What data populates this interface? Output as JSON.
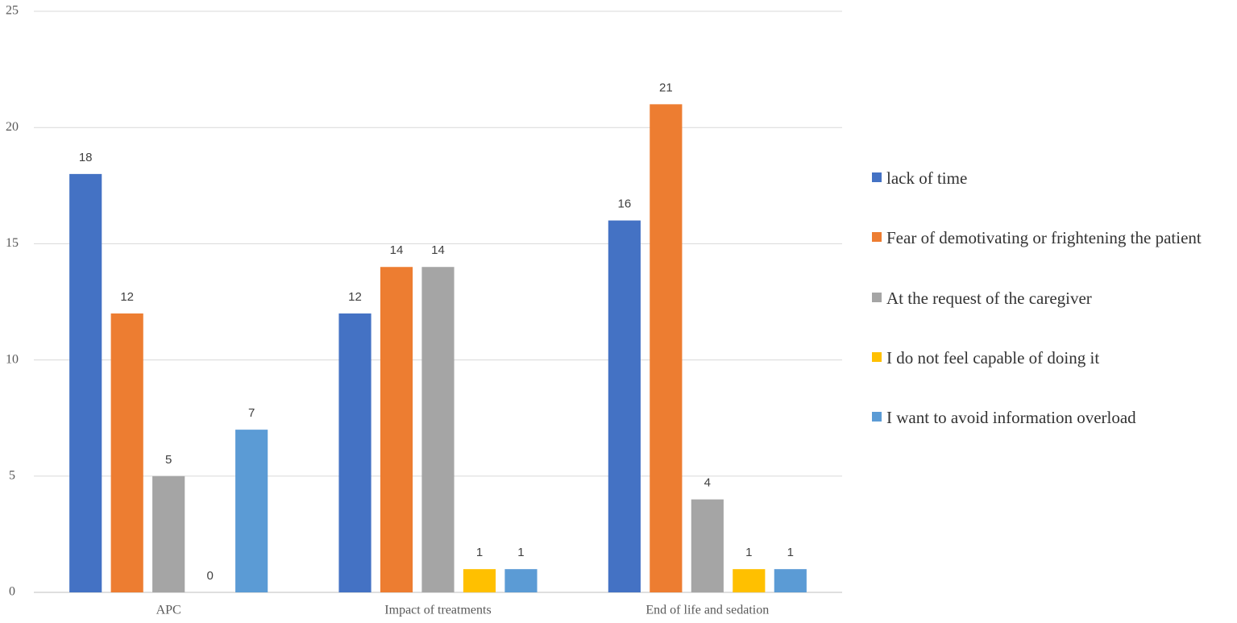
{
  "chart_data": {
    "type": "bar",
    "categories": [
      "APC",
      "Impact of treatments",
      "End of life and sedation"
    ],
    "series": [
      {
        "name": "lack of time",
        "color": "#4472c4",
        "values": [
          18,
          12,
          16
        ]
      },
      {
        "name": "Fear of demotivating or frightening the patient",
        "color": "#ed7d31",
        "values": [
          12,
          14,
          21
        ]
      },
      {
        "name": "At the request of the caregiver",
        "color": "#a5a5a5",
        "values": [
          5,
          14,
          4
        ]
      },
      {
        "name": "I do not feel capable of doing it",
        "color": "#ffc000",
        "values": [
          0,
          1,
          1
        ]
      },
      {
        "name": "I want to avoid information overload",
        "color": "#5b9bd5",
        "values": [
          7,
          1,
          1
        ]
      }
    ],
    "ylim": [
      0,
      25
    ],
    "yticks": [
      0,
      5,
      10,
      15,
      20,
      25
    ],
    "grid": true,
    "legend": "right"
  }
}
